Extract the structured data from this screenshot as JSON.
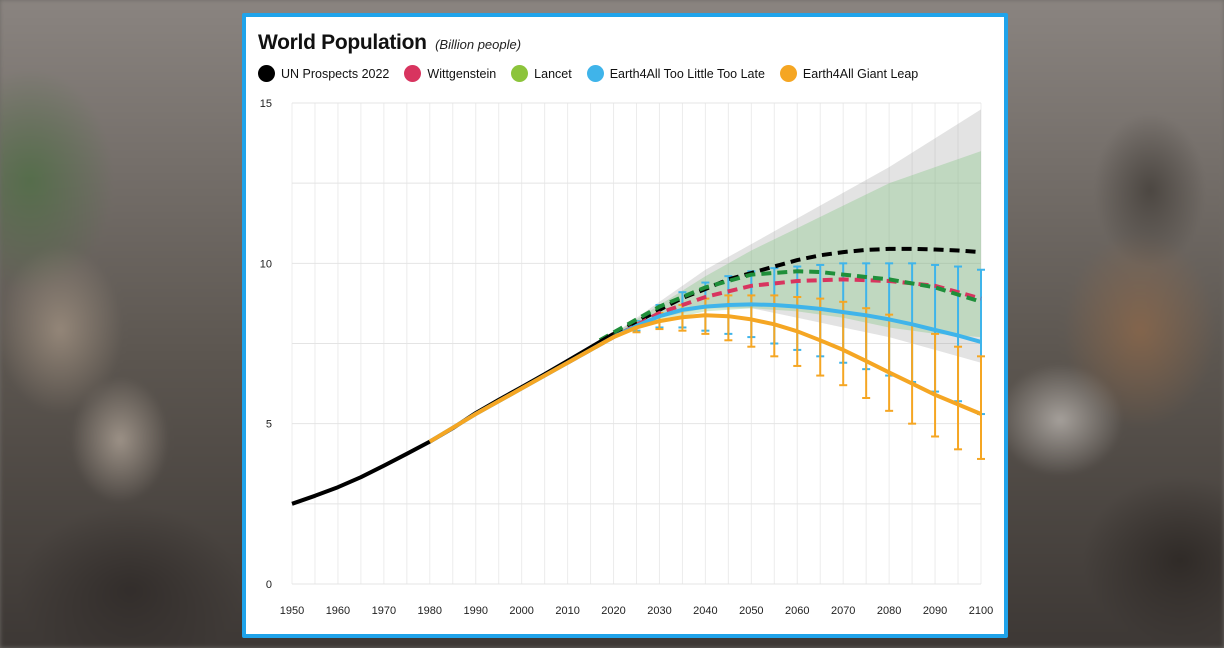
{
  "chart_data": {
    "type": "line",
    "title": "World Population",
    "subtitle": "(Billion people)",
    "xlabel": "",
    "ylabel": "",
    "xlim": [
      1950,
      2100
    ],
    "ylim": [
      0,
      15
    ],
    "x_ticks": [
      1950,
      1960,
      1970,
      1980,
      1990,
      2000,
      2010,
      2020,
      2030,
      2040,
      2050,
      2060,
      2070,
      2080,
      2090,
      2100
    ],
    "y_ticks": [
      0,
      5,
      10,
      15
    ],
    "grid": true,
    "legend_position": "top",
    "series": [
      {
        "name": "UN Prospects 2022",
        "color": "#000000",
        "historical": [
          [
            1950,
            2.5
          ],
          [
            1955,
            2.75
          ],
          [
            1960,
            3.02
          ],
          [
            1965,
            3.33
          ],
          [
            1970,
            3.69
          ],
          [
            1975,
            4.06
          ],
          [
            1980,
            4.44
          ],
          [
            1985,
            4.86
          ],
          [
            1990,
            5.33
          ],
          [
            1995,
            5.74
          ],
          [
            2000,
            6.14
          ],
          [
            2005,
            6.54
          ],
          [
            2010,
            6.96
          ],
          [
            2015,
            7.38
          ],
          [
            2020,
            7.8
          ]
        ],
        "projection": [
          [
            2020,
            7.8
          ],
          [
            2025,
            8.17
          ],
          [
            2030,
            8.55
          ],
          [
            2035,
            8.92
          ],
          [
            2040,
            9.2
          ],
          [
            2045,
            9.5
          ],
          [
            2050,
            9.7
          ],
          [
            2055,
            9.9
          ],
          [
            2060,
            10.1
          ],
          [
            2065,
            10.25
          ],
          [
            2070,
            10.35
          ],
          [
            2075,
            10.42
          ],
          [
            2080,
            10.45
          ],
          [
            2085,
            10.45
          ],
          [
            2090,
            10.43
          ],
          [
            2095,
            10.4
          ],
          [
            2100,
            10.35
          ]
        ],
        "band_upper": [
          [
            2020,
            7.8
          ],
          [
            2030,
            8.8
          ],
          [
            2040,
            9.8
          ],
          [
            2050,
            10.6
          ],
          [
            2060,
            11.4
          ],
          [
            2070,
            12.2
          ],
          [
            2080,
            13.0
          ],
          [
            2090,
            13.9
          ],
          [
            2100,
            14.8
          ]
        ],
        "band_lower": [
          [
            2020,
            7.8
          ],
          [
            2030,
            8.3
          ],
          [
            2040,
            8.6
          ],
          [
            2050,
            8.6
          ],
          [
            2060,
            8.3
          ],
          [
            2070,
            8.0
          ],
          [
            2080,
            7.7
          ],
          [
            2090,
            7.3
          ],
          [
            2100,
            6.9
          ]
        ]
      },
      {
        "name": "Wittgenstein",
        "color": "#d8345f",
        "projection": [
          [
            2010,
            6.9
          ],
          [
            2020,
            7.7
          ],
          [
            2030,
            8.45
          ],
          [
            2040,
            8.95
          ],
          [
            2050,
            9.3
          ],
          [
            2060,
            9.45
          ],
          [
            2070,
            9.5
          ],
          [
            2080,
            9.45
          ],
          [
            2090,
            9.3
          ],
          [
            2100,
            8.9
          ]
        ]
      },
      {
        "name": "Lancet",
        "color": "#8cc43b",
        "line_color": "#1f8f3a",
        "projection": [
          [
            2017,
            7.6
          ],
          [
            2025,
            8.25
          ],
          [
            2030,
            8.65
          ],
          [
            2040,
            9.25
          ],
          [
            2050,
            9.65
          ],
          [
            2060,
            9.75
          ],
          [
            2065,
            9.73
          ],
          [
            2070,
            9.65
          ],
          [
            2080,
            9.5
          ],
          [
            2090,
            9.25
          ],
          [
            2100,
            8.8
          ]
        ],
        "band_upper": [
          [
            2020,
            7.8
          ],
          [
            2030,
            8.7
          ],
          [
            2040,
            9.6
          ],
          [
            2050,
            10.4
          ],
          [
            2060,
            11.1
          ],
          [
            2070,
            11.8
          ],
          [
            2080,
            12.5
          ],
          [
            2090,
            13.0
          ],
          [
            2100,
            13.5
          ]
        ],
        "band_lower": [
          [
            2020,
            7.8
          ],
          [
            2030,
            8.2
          ],
          [
            2040,
            8.5
          ],
          [
            2050,
            8.6
          ],
          [
            2060,
            8.5
          ],
          [
            2070,
            8.3
          ],
          [
            2080,
            8.0
          ],
          [
            2090,
            7.8
          ],
          [
            2100,
            7.7
          ]
        ]
      },
      {
        "name": "Earth4All Too Little Too Late",
        "color": "#3fb4ea",
        "projection": [
          [
            1980,
            4.44
          ],
          [
            1990,
            5.3
          ],
          [
            2000,
            6.1
          ],
          [
            2010,
            6.9
          ],
          [
            2020,
            7.7
          ],
          [
            2025,
            8.05
          ],
          [
            2030,
            8.35
          ],
          [
            2035,
            8.55
          ],
          [
            2040,
            8.65
          ],
          [
            2045,
            8.7
          ],
          [
            2050,
            8.72
          ],
          [
            2055,
            8.7
          ],
          [
            2060,
            8.65
          ],
          [
            2065,
            8.58
          ],
          [
            2070,
            8.48
          ],
          [
            2075,
            8.38
          ],
          [
            2080,
            8.25
          ],
          [
            2085,
            8.1
          ],
          [
            2090,
            7.92
          ],
          [
            2095,
            7.75
          ],
          [
            2100,
            7.55
          ]
        ],
        "error_bars": [
          [
            2025,
            8.05,
            7.9,
            8.2
          ],
          [
            2030,
            8.35,
            8.0,
            8.7
          ],
          [
            2035,
            8.55,
            8.0,
            9.1
          ],
          [
            2040,
            8.65,
            7.9,
            9.4
          ],
          [
            2045,
            8.7,
            7.8,
            9.6
          ],
          [
            2050,
            8.72,
            7.7,
            9.75
          ],
          [
            2055,
            8.7,
            7.5,
            9.85
          ],
          [
            2060,
            8.65,
            7.3,
            9.9
          ],
          [
            2065,
            8.58,
            7.1,
            9.95
          ],
          [
            2070,
            8.48,
            6.9,
            10.0
          ],
          [
            2075,
            8.38,
            6.7,
            10.0
          ],
          [
            2080,
            8.25,
            6.5,
            10.0
          ],
          [
            2085,
            8.1,
            6.3,
            10.0
          ],
          [
            2090,
            7.92,
            6.0,
            9.95
          ],
          [
            2095,
            7.75,
            5.7,
            9.9
          ],
          [
            2100,
            7.55,
            5.3,
            9.8
          ]
        ]
      },
      {
        "name": "Earth4All Giant Leap",
        "color": "#f5a623",
        "projection": [
          [
            1980,
            4.44
          ],
          [
            1990,
            5.3
          ],
          [
            2000,
            6.1
          ],
          [
            2010,
            6.9
          ],
          [
            2020,
            7.7
          ],
          [
            2025,
            8.0
          ],
          [
            2030,
            8.2
          ],
          [
            2035,
            8.32
          ],
          [
            2040,
            8.38
          ],
          [
            2045,
            8.35
          ],
          [
            2050,
            8.25
          ],
          [
            2055,
            8.1
          ],
          [
            2060,
            7.88
          ],
          [
            2065,
            7.6
          ],
          [
            2070,
            7.3
          ],
          [
            2075,
            6.95
          ],
          [
            2080,
            6.6
          ],
          [
            2085,
            6.25
          ],
          [
            2090,
            5.9
          ],
          [
            2095,
            5.6
          ],
          [
            2100,
            5.3
          ]
        ],
        "error_bars": [
          [
            2025,
            8.0,
            7.85,
            8.15
          ],
          [
            2030,
            8.2,
            7.95,
            8.45
          ],
          [
            2035,
            8.32,
            7.9,
            8.7
          ],
          [
            2040,
            8.38,
            7.8,
            8.9
          ],
          [
            2045,
            8.35,
            7.6,
            9.0
          ],
          [
            2050,
            8.25,
            7.4,
            9.0
          ],
          [
            2055,
            8.1,
            7.1,
            9.0
          ],
          [
            2060,
            7.88,
            6.8,
            8.95
          ],
          [
            2065,
            7.6,
            6.5,
            8.9
          ],
          [
            2070,
            7.3,
            6.2,
            8.8
          ],
          [
            2075,
            6.95,
            5.8,
            8.6
          ],
          [
            2080,
            6.6,
            5.4,
            8.4
          ],
          [
            2085,
            6.25,
            5.0,
            8.1
          ],
          [
            2090,
            5.9,
            4.6,
            7.8
          ],
          [
            2095,
            5.6,
            4.2,
            7.4
          ],
          [
            2100,
            5.3,
            3.9,
            7.1
          ]
        ]
      }
    ]
  }
}
